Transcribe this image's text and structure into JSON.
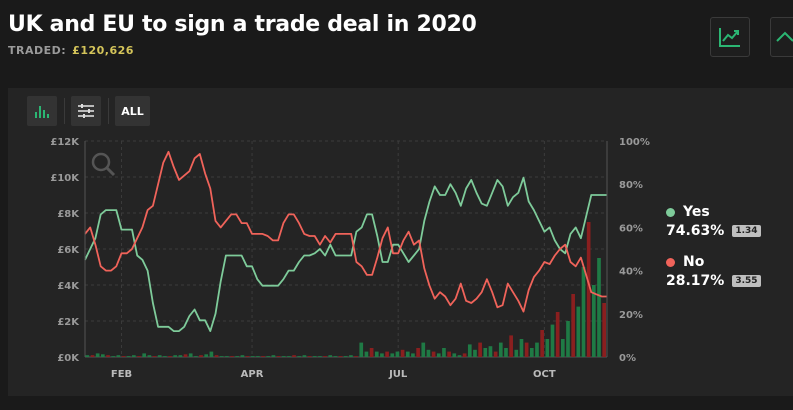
{
  "market": {
    "title": "UK and EU to sign a trade deal in 2020",
    "traded_label": "TRADED:",
    "traded_value": "£120,626"
  },
  "icons": {
    "chart_button": "chart-line-icon",
    "expand_button": "chevron-up-icon"
  },
  "toolbar": {
    "bar_chart_icon": "bar-chart-icon",
    "filter_icon": "sliders-icon",
    "all_label": "ALL"
  },
  "colors": {
    "yes": "#7ecb9a",
    "no": "#f0635a",
    "accent": "#2bb673"
  },
  "legend": [
    {
      "name": "Yes",
      "value": "74.63%",
      "odds": "1.34"
    },
    {
      "name": "No",
      "value": "28.17%",
      "odds": "3.55"
    }
  ],
  "chart_data": {
    "type": "line",
    "x_ticks": [
      "FEB",
      "APR",
      "JUL",
      "OCT"
    ],
    "y_left_ticks": [
      "£0K",
      "£2K",
      "£4K",
      "£6K",
      "£8K",
      "£10K",
      "£12K"
    ],
    "y_right_ticks": [
      "0%",
      "20%",
      "40%",
      "60%",
      "80%",
      "100%"
    ],
    "ylim_volume": [
      0,
      12000
    ],
    "ylim_percent": [
      0,
      100
    ],
    "x_range": [
      0,
      100
    ],
    "series": [
      {
        "name": "Yes",
        "color": "#7ecb9a",
        "x": [
          0,
          1,
          2,
          3,
          4,
          5,
          6,
          7,
          8,
          9,
          10,
          11,
          12,
          13,
          14,
          15,
          16,
          17,
          18,
          19,
          20,
          21,
          22,
          23,
          24,
          25,
          26,
          27,
          28,
          29,
          30,
          31,
          32,
          33,
          34,
          35,
          36,
          37,
          38,
          39,
          40,
          41,
          42,
          43,
          44,
          45,
          46,
          47,
          48,
          49,
          50,
          51,
          52,
          53,
          54,
          55,
          56,
          57,
          58,
          59,
          60,
          61,
          62,
          63,
          64,
          65,
          66,
          67,
          68,
          69,
          70,
          71,
          72,
          73,
          74,
          75,
          76,
          77,
          78,
          79,
          80,
          81,
          82,
          83,
          84,
          85,
          86,
          87,
          88,
          89,
          90,
          91,
          92,
          93,
          94,
          95,
          96,
          97,
          98,
          99,
          100
        ],
        "values": [
          45,
          50,
          55,
          66,
          68,
          68,
          68,
          59,
          59,
          59,
          47,
          45,
          40,
          25,
          14,
          14,
          14,
          12,
          12,
          14,
          19,
          22,
          17,
          17,
          12,
          20,
          35,
          47,
          47,
          47,
          47,
          42,
          42,
          36,
          33,
          33,
          33,
          33,
          36,
          40,
          40,
          44,
          47,
          47,
          48,
          50,
          47,
          52,
          47,
          47,
          47,
          47,
          58,
          60,
          66,
          66,
          56,
          44,
          44,
          52,
          52,
          48,
          44,
          47,
          50,
          63,
          72,
          79,
          75,
          75,
          80,
          76,
          70,
          78,
          82,
          76,
          71,
          70,
          76,
          82,
          79,
          70,
          74,
          76,
          83,
          72,
          68,
          63,
          58,
          60,
          54,
          50,
          48,
          57,
          60,
          55,
          65,
          75,
          75,
          75,
          75
        ]
      },
      {
        "name": "No",
        "color": "#f0635a",
        "x": [
          0,
          1,
          2,
          3,
          4,
          5,
          6,
          7,
          8,
          9,
          10,
          11,
          12,
          13,
          14,
          15,
          16,
          17,
          18,
          19,
          20,
          21,
          22,
          23,
          24,
          25,
          26,
          27,
          28,
          29,
          30,
          31,
          32,
          33,
          34,
          35,
          36,
          37,
          38,
          39,
          40,
          41,
          42,
          43,
          44,
          45,
          46,
          47,
          48,
          49,
          50,
          51,
          52,
          53,
          54,
          55,
          56,
          57,
          58,
          59,
          60,
          61,
          62,
          63,
          64,
          65,
          66,
          67,
          68,
          69,
          70,
          71,
          72,
          73,
          74,
          75,
          76,
          77,
          78,
          79,
          80,
          81,
          82,
          83,
          84,
          85,
          86,
          87,
          88,
          89,
          90,
          91,
          92,
          93,
          94,
          95,
          96,
          97,
          98,
          99,
          100
        ],
        "values": [
          57,
          60,
          52,
          42,
          40,
          40,
          42,
          48,
          48,
          50,
          55,
          60,
          68,
          70,
          80,
          90,
          95,
          88,
          82,
          84,
          86,
          92,
          94,
          85,
          78,
          63,
          60,
          63,
          66,
          66,
          62,
          62,
          57,
          57,
          57,
          56,
          54,
          54,
          62,
          66,
          66,
          62,
          57,
          56,
          56,
          52,
          56,
          53,
          57,
          57,
          57,
          57,
          44,
          42,
          38,
          38,
          46,
          55,
          60,
          48,
          48,
          54,
          58,
          52,
          54,
          41,
          33,
          27,
          30,
          28,
          24,
          27,
          34,
          26,
          25,
          27,
          30,
          36,
          30,
          23,
          24,
          34,
          30,
          26,
          21,
          31,
          37,
          40,
          44,
          43,
          47,
          50,
          52,
          44,
          42,
          46,
          38,
          30,
          29,
          28,
          28
        ]
      }
    ],
    "volume": {
      "color_yes": "#1f7a45",
      "color_no": "#8a1f1f",
      "values_k": [
        0.1,
        0.1,
        0.2,
        0.15,
        0.1,
        0.05,
        0.1,
        0.05,
        0.05,
        0.1,
        0.05,
        0.2,
        0.1,
        0.05,
        0.1,
        0.05,
        0.05,
        0.1,
        0.1,
        0.15,
        0.2,
        0.05,
        0.1,
        0.15,
        0.3,
        0.1,
        0.05,
        0.05,
        0.05,
        0.05,
        0.1,
        0.05,
        0.05,
        0.05,
        0.05,
        0.05,
        0.1,
        0.05,
        0.05,
        0.05,
        0.1,
        0.05,
        0.1,
        0.05,
        0.05,
        0.05,
        0.05,
        0.1,
        0.05,
        0.05,
        0.05,
        0.1,
        0.05,
        0.8,
        0.3,
        0.5,
        0.3,
        0.2,
        0.3,
        0.2,
        0.3,
        0.4,
        0.3,
        0.2,
        0.5,
        0.8,
        0.4,
        0.3,
        0.2,
        0.5,
        0.3,
        0.2,
        0.1,
        0.2,
        0.7,
        0.4,
        0.8,
        0.5,
        0.6,
        0.3,
        0.8,
        0.5,
        1.2,
        0.4,
        1.0,
        0.8,
        0.5,
        0.8,
        1.5,
        1.0,
        1.8,
        2.5,
        1.0,
        2.0,
        3.5,
        2.8,
        5.0,
        7.5,
        4.0,
        5.5,
        3.0
      ]
    }
  }
}
